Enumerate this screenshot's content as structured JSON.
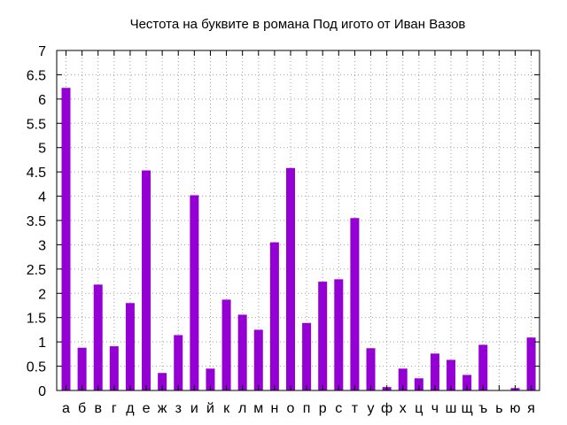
{
  "chart_data": {
    "type": "bar",
    "title": "Честота на буквите в романа Под игото от Иван Вазов",
    "xlabel": "",
    "ylabel": "",
    "ylim": [
      0,
      7
    ],
    "yticks": [
      "0",
      "0.5",
      "1",
      "1.5",
      "2",
      "2.5",
      "3",
      "3.5",
      "4",
      "4.5",
      "5",
      "5.5",
      "6",
      "6.5",
      "7"
    ],
    "grid": true,
    "bar_color": "#9400d3",
    "categories": [
      "а",
      "б",
      "в",
      "г",
      "д",
      "е",
      "ж",
      "з",
      "и",
      "й",
      "к",
      "л",
      "м",
      "н",
      "о",
      "п",
      "р",
      "с",
      "т",
      "у",
      "ф",
      "х",
      "ц",
      "ч",
      "ш",
      "щ",
      "ъ",
      "ь",
      "ю",
      "я"
    ],
    "values": [
      6.23,
      0.88,
      2.18,
      0.91,
      1.8,
      4.53,
      0.36,
      1.14,
      4.02,
      0.45,
      1.87,
      1.56,
      1.25,
      3.05,
      4.58,
      1.39,
      2.24,
      2.29,
      3.55,
      0.87,
      0.07,
      0.45,
      0.25,
      0.76,
      0.63,
      0.32,
      0.94,
      0.0,
      0.05,
      1.09
    ]
  }
}
